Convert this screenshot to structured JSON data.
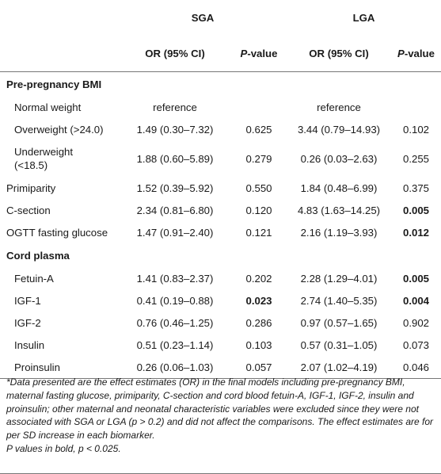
{
  "header": {
    "group_sga": "SGA",
    "group_lga": "LGA",
    "col_or": "OR (95% CI)",
    "col_p_italic": "P",
    "col_p_rest": "-value"
  },
  "sections": {
    "bmi": "Pre-pregnancy BMI",
    "cord": "Cord plasma"
  },
  "rows": {
    "normal": {
      "label": "Normal weight",
      "sga_or": "reference",
      "lga_or": "reference"
    },
    "overweight": {
      "label": "Overweight (>24.0)",
      "sga_or": "1.49 (0.30–7.32)",
      "sga_p": "0.625",
      "lga_or": "3.44 (0.79–14.93)",
      "lga_p": "0.102"
    },
    "underweight": {
      "label_line1": "Underweight",
      "label_line2": "(<18.5)",
      "sga_or": "1.88 (0.60–5.89)",
      "sga_p": "0.279",
      "lga_or": "0.26 (0.03–2.63)",
      "lga_p": "0.255"
    },
    "primiparity": {
      "label": "Primiparity",
      "sga_or": "1.52 (0.39–5.92)",
      "sga_p": "0.550",
      "lga_or": "1.84 (0.48–6.99)",
      "lga_p": "0.375"
    },
    "csection": {
      "label": "C-section",
      "sga_or": "2.34 (0.81–6.80)",
      "sga_p": "0.120",
      "lga_or": "4.83 (1.63–14.25)",
      "lga_p": "0.005"
    },
    "ogtt": {
      "label": "OGTT fasting glucose",
      "sga_or": "1.47 (0.91–2.40)",
      "sga_p": "0.121",
      "lga_or": "2.16 (1.19–3.93)",
      "lga_p": "0.012"
    },
    "fetuin": {
      "label": "Fetuin-A",
      "sga_or": "1.41 (0.83–2.37)",
      "sga_p": "0.202",
      "lga_or": "2.28 (1.29–4.01)",
      "lga_p": "0.005"
    },
    "igf1": {
      "label": "IGF-1",
      "sga_or": "0.41 (0.19–0.88)",
      "sga_p": "0.023",
      "lga_or": "2.74 (1.40–5.35)",
      "lga_p": "0.004"
    },
    "igf2": {
      "label": "IGF-2",
      "sga_or": "0.76 (0.46–1.25)",
      "sga_p": "0.286",
      "lga_or": "0.97 (0.57–1.65)",
      "lga_p": "0.902"
    },
    "insulin": {
      "label": "Insulin",
      "sga_or": "0.51 (0.23–1.14)",
      "sga_p": "0.103",
      "lga_or": "0.57 (0.31–1.05)",
      "lga_p": "0.073"
    },
    "proinsulin": {
      "label": "Proinsulin",
      "sga_or": "0.26 (0.06–1.03)",
      "sga_p": "0.057",
      "lga_or": "2.07 (1.02–4.19)",
      "lga_p": "0.046"
    }
  },
  "footnote": {
    "text": "*Data presented are the effect estimates (OR) in the final models including pre-pregnancy BMI, maternal fasting glucose, primiparity, C-section and cord blood fetuin-A, IGF-1, IGF-2, insulin and proinsulin; other maternal and neonatal characteristic variables were excluded since they were not associated with SGA or LGA (p > 0.2) and did not affect the comparisons. The effect estimates are for per SD increase in each biomarker.",
    "bold_note": "P values in bold, p < 0.025."
  }
}
